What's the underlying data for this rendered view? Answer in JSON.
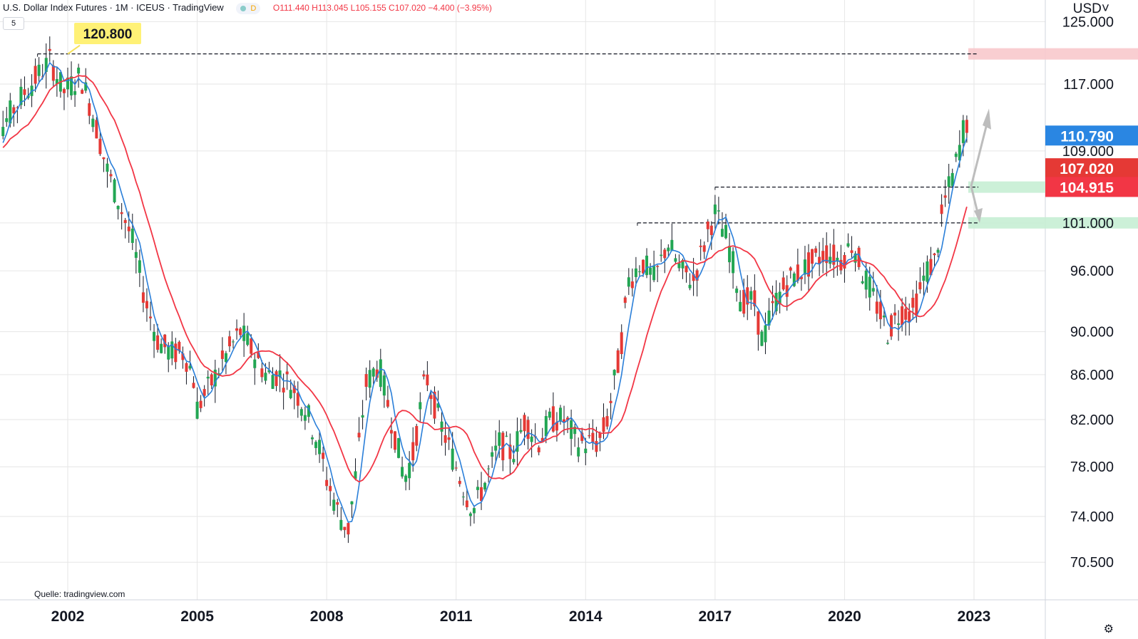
{
  "header": {
    "symbol": "U.S. Dollar Index Futures · 1M · ICEUS · TradingView",
    "badge": "D",
    "ohlc": "O111.440  H113.045  L105.155  C107.020  −4.400 (−3.95%)",
    "interval_pill": "5",
    "currency": "USD˅",
    "settings_icon": "⚙"
  },
  "source": "Quelle: tradingview.com",
  "colors": {
    "up": "#22a653",
    "down": "#e53935",
    "ma_fast": "#2a7fd9",
    "ma_slow": "#f23645",
    "grid": "#e6e6e6",
    "red_zone": "#f8c9cc",
    "green_zone": "#c7eed4",
    "label_blue": "#2a86e2",
    "label_red": "#e53935",
    "label_red2": "#f23645"
  },
  "chart_data": {
    "type": "candlestick",
    "scale": "log",
    "x_ticks": [
      "2002",
      "2005",
      "2008",
      "2011",
      "2014",
      "2017",
      "2020",
      "2023"
    ],
    "y_ticks": [
      "125.000",
      "117.000",
      "109.000",
      "101.000",
      "96.000",
      "90.000",
      "86.000",
      "82.000",
      "78.000",
      "74.000",
      "70.500"
    ],
    "y_tick_values": [
      125,
      117,
      109,
      101,
      96,
      90,
      86,
      82,
      78,
      74,
      70.5
    ],
    "price_labels": [
      {
        "text": "110.790",
        "value": 110.79,
        "color": "#2a86e2"
      },
      {
        "text": "107.020",
        "value": 107.02,
        "color": "#e53935"
      },
      {
        "text": "104.915",
        "value": 104.915,
        "color": "#f23645"
      }
    ],
    "annotation": {
      "text": "120.800",
      "value": 120.8
    },
    "horizontal_lines": [
      {
        "value": 120.8,
        "from": 2001.3,
        "to": 2023.1
      },
      {
        "value": 104.9,
        "from": 2017.0,
        "to": 2023.1
      },
      {
        "value": 101.0,
        "from": 2015.2,
        "to": 2023.1
      }
    ],
    "zones": [
      {
        "value": 120.8,
        "color": "red"
      },
      {
        "value": 104.9,
        "color": "green"
      },
      {
        "value": 101.0,
        "color": "green"
      }
    ],
    "series_anchor_points": [
      [
        2000.0,
        108
      ],
      [
        2000.5,
        112
      ],
      [
        2001.0,
        116
      ],
      [
        2001.3,
        118
      ],
      [
        2001.6,
        120
      ],
      [
        2001.9,
        116
      ],
      [
        2002.3,
        118
      ],
      [
        2002.6,
        113
      ],
      [
        2002.9,
        107
      ],
      [
        2003.2,
        103
      ],
      [
        2003.5,
        99
      ],
      [
        2003.8,
        93
      ],
      [
        2004.1,
        89
      ],
      [
        2004.4,
        88
      ],
      [
        2004.7,
        88
      ],
      [
        2004.9,
        86
      ],
      [
        2005.0,
        83
      ],
      [
        2005.3,
        85
      ],
      [
        2005.7,
        88
      ],
      [
        2006.0,
        90
      ],
      [
        2006.3,
        88
      ],
      [
        2006.6,
        86
      ],
      [
        2006.9,
        86
      ],
      [
        2007.2,
        85
      ],
      [
        2007.5,
        83
      ],
      [
        2007.8,
        80
      ],
      [
        2008.0,
        77
      ],
      [
        2008.3,
        74
      ],
      [
        2008.5,
        73
      ],
      [
        2008.7,
        78
      ],
      [
        2008.9,
        85
      ],
      [
        2009.2,
        87
      ],
      [
        2009.5,
        82
      ],
      [
        2009.8,
        77
      ],
      [
        2010.0,
        79
      ],
      [
        2010.3,
        86
      ],
      [
        2010.6,
        82
      ],
      [
        2010.9,
        79
      ],
      [
        2011.2,
        76
      ],
      [
        2011.4,
        74.5
      ],
      [
        2011.7,
        77
      ],
      [
        2012.0,
        80
      ],
      [
        2012.3,
        79
      ],
      [
        2012.6,
        82
      ],
      [
        2012.9,
        80
      ],
      [
        2013.2,
        82
      ],
      [
        2013.5,
        82
      ],
      [
        2013.8,
        80
      ],
      [
        2014.1,
        80
      ],
      [
        2014.3,
        80
      ],
      [
        2014.5,
        82
      ],
      [
        2014.8,
        88
      ],
      [
        2015.0,
        95
      ],
      [
        2015.3,
        97
      ],
      [
        2015.6,
        95
      ],
      [
        2015.9,
        99
      ],
      [
        2016.2,
        96
      ],
      [
        2016.5,
        95
      ],
      [
        2016.9,
        101
      ],
      [
        2017.0,
        102
      ],
      [
        2017.3,
        99
      ],
      [
        2017.6,
        93
      ],
      [
        2017.9,
        93
      ],
      [
        2018.1,
        89
      ],
      [
        2018.4,
        93
      ],
      [
        2018.7,
        95
      ],
      [
        2019.0,
        96
      ],
      [
        2019.3,
        97
      ],
      [
        2019.6,
        98
      ],
      [
        2019.9,
        97
      ],
      [
        2020.2,
        99
      ],
      [
        2020.4,
        96
      ],
      [
        2020.7,
        93
      ],
      [
        2021.0,
        90
      ],
      [
        2021.3,
        92
      ],
      [
        2021.6,
        92
      ],
      [
        2021.9,
        96
      ],
      [
        2022.1,
        97
      ],
      [
        2022.3,
        103
      ],
      [
        2022.5,
        106
      ],
      [
        2022.7,
        110
      ],
      [
        2022.8,
        113
      ],
      [
        2022.9,
        111
      ],
      [
        2023.0,
        107
      ]
    ]
  }
}
